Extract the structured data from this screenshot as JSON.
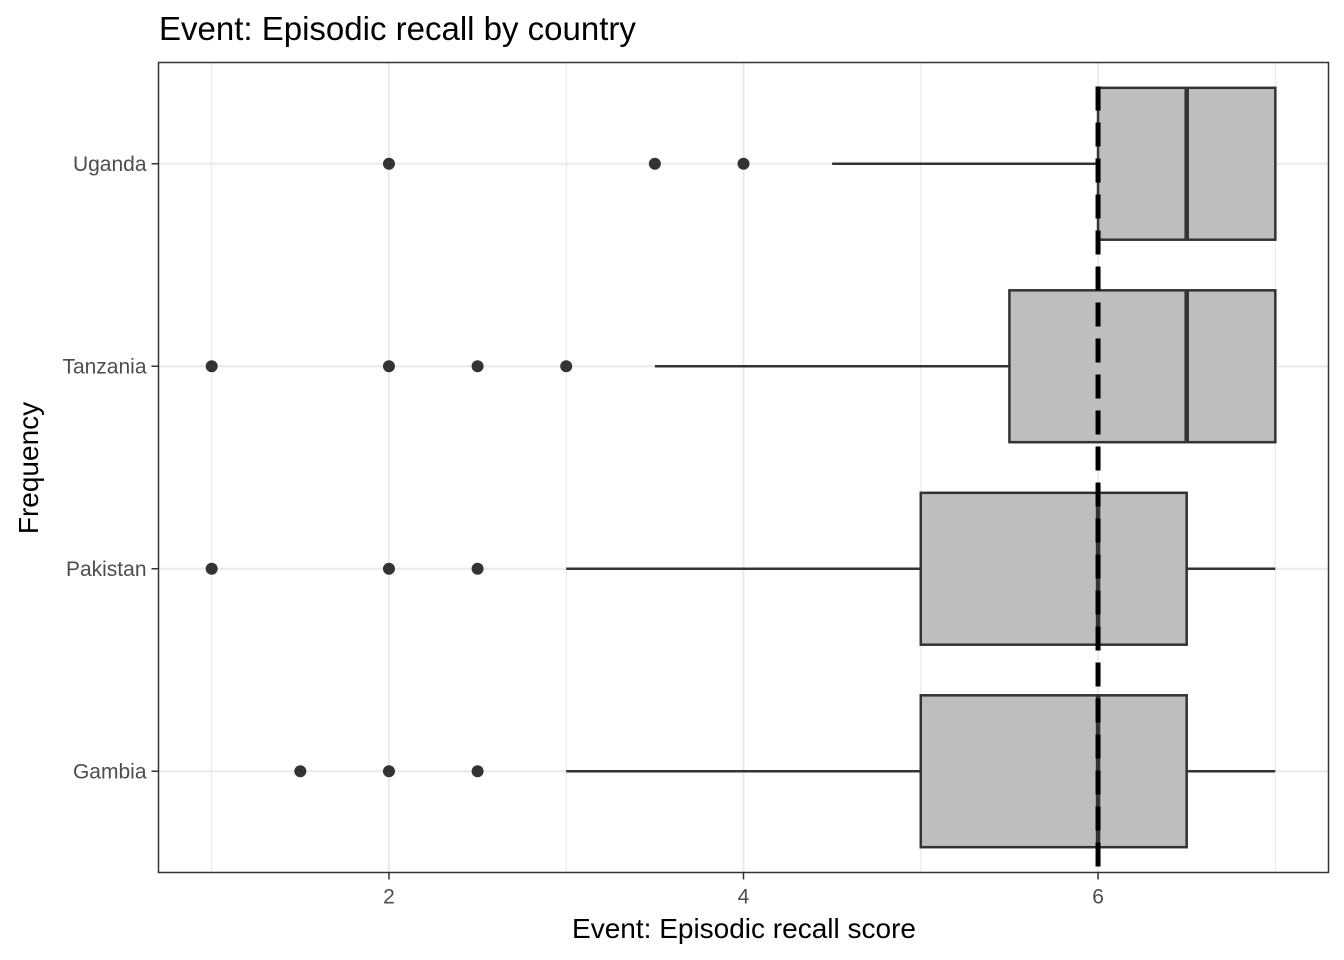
{
  "chart_data": {
    "type": "boxplot",
    "orientation": "horizontal",
    "title": "Event: Episodic recall by country",
    "xlabel": "Event: Episodic recall score",
    "ylabel": "Frequency",
    "xlim": [
      0.7,
      7.3
    ],
    "x_ticks": [
      2,
      4,
      6
    ],
    "x_minor_grid": [
      1,
      3,
      5,
      7
    ],
    "grid": true,
    "theme": "bw",
    "box_fill": "#bebebe",
    "box_stroke": "#333333",
    "reference_line": {
      "x": 6,
      "style": "dashed",
      "color": "#000000"
    },
    "categories": [
      "Gambia",
      "Pakistan",
      "Tanzania",
      "Uganda"
    ],
    "boxes": [
      {
        "category": "Gambia",
        "whisker_low": 3.0,
        "q1": 5.0,
        "median": 6.0,
        "q3": 6.5,
        "whisker_high": 7.0,
        "outliers": [
          1.5,
          2.0,
          2.5
        ]
      },
      {
        "category": "Pakistan",
        "whisker_low": 3.0,
        "q1": 5.0,
        "median": 6.0,
        "q3": 6.5,
        "whisker_high": 7.0,
        "outliers": [
          1.0,
          2.0,
          2.5
        ]
      },
      {
        "category": "Tanzania",
        "whisker_low": 3.5,
        "q1": 5.5,
        "median": 6.5,
        "q3": 7.0,
        "whisker_high": 7.0,
        "outliers": [
          1.0,
          2.0,
          2.5,
          3.0
        ]
      },
      {
        "category": "Uganda",
        "whisker_low": 4.5,
        "q1": 6.0,
        "median": 6.5,
        "q3": 7.0,
        "whisker_high": 7.0,
        "outliers": [
          2.0,
          3.5,
          4.0
        ]
      }
    ]
  }
}
